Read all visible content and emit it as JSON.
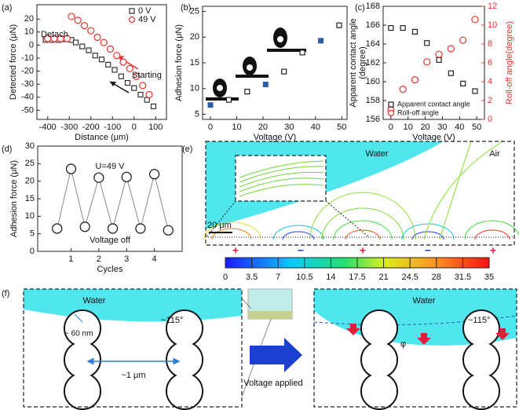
{
  "chart_data": [
    {
      "type": "scatter",
      "panel": "(a)",
      "xlabel": "Distance (μm)",
      "ylabel": "Detected force (μN)",
      "xlim": [
        -450,
        150
      ],
      "ylim": [
        -57,
        31
      ],
      "xticks": [
        -400,
        -300,
        -200,
        -100,
        0,
        100
      ],
      "yticks": [
        20,
        10,
        0,
        -10,
        -20,
        -30,
        -40,
        -50
      ],
      "annotations": [
        "Detach",
        "Starting"
      ],
      "legend": "upper right",
      "series": [
        {
          "name": "0 V",
          "color": "#333333",
          "marker": "square",
          "x": [
            -410,
            -380,
            -350,
            -320,
            -290,
            -270,
            -240,
            -210,
            -180,
            -150,
            -120,
            -90,
            -60,
            -30,
            0,
            30,
            60,
            90
          ],
          "values": [
            4,
            4,
            4,
            4.5,
            4,
            2,
            -1,
            -4,
            -8,
            -11,
            -15,
            -19,
            -24,
            -29,
            -33,
            -38,
            -42,
            -47
          ]
        },
        {
          "name": "49 V",
          "color": "#e8322d",
          "marker": "circle",
          "x": [
            -400,
            -370,
            -340,
            -310,
            -290,
            -260,
            -230,
            -200,
            -170,
            -140,
            -110,
            -80,
            -50,
            -20,
            10,
            40,
            70
          ],
          "values": [
            5,
            5,
            5,
            5,
            22,
            19,
            15,
            11,
            6,
            2,
            -3,
            -8,
            -13,
            -18,
            -24,
            -31,
            -38
          ]
        }
      ]
    },
    {
      "type": "scatter",
      "panel": "(b)",
      "xlabel": "Voltage (V)",
      "ylabel": "Adhesion force (μN)",
      "xlim": [
        -3,
        52
      ],
      "ylim": [
        4,
        26
      ],
      "xticks": [
        0,
        10,
        20,
        30,
        40,
        50
      ],
      "yticks": [
        5,
        10,
        15,
        20,
        25
      ],
      "series": [
        {
          "color": "#222222",
          "marker": "square",
          "x": [
            7,
            14,
            28,
            35,
            49
          ],
          "values": [
            7.8,
            9.4,
            13.3,
            17,
            22.3
          ]
        },
        {
          "color": "#2d5fa8",
          "marker": "filled",
          "x": [
            0,
            21,
            42
          ],
          "values": [
            6.8,
            10.8,
            19.3
          ]
        }
      ]
    },
    {
      "type": "scatter",
      "panel": "(c)",
      "xlabel": "Voltage (V)",
      "ylabel": [
        "Apparent contact angle",
        "(degree)"
      ],
      "y2label": "Roll-off angle(degree)",
      "xlim": [
        -4.5,
        54.5
      ],
      "ylim": [
        156,
        168
      ],
      "y2lim": [
        0,
        12
      ],
      "xticks": [
        0,
        10,
        20,
        30,
        40,
        50
      ],
      "yticks": [
        156,
        158,
        160,
        162,
        164,
        166,
        168
      ],
      "y2ticks": [
        0,
        2,
        4,
        6,
        8,
        10,
        12
      ],
      "legend": "lower right",
      "series": [
        {
          "name": "Apparent contact angle",
          "color": "#222222",
          "marker": "square",
          "x": [
            0,
            7,
            14,
            21,
            28,
            35,
            42,
            49
          ],
          "values": [
            165.7,
            165.7,
            165.3,
            164.1,
            162.3,
            160.9,
            159.8,
            159
          ]
        },
        {
          "name": "Roll-off angle",
          "color": "#e8322d",
          "marker": "circle",
          "axis": "y2",
          "x": [
            0,
            7,
            14,
            21,
            28,
            35,
            42,
            49
          ],
          "values": [
            1,
            3.2,
            4.2,
            6.1,
            6.9,
            7.5,
            8.4,
            10.6
          ]
        }
      ]
    },
    {
      "type": "line",
      "panel": "(d)",
      "xlabel": "Cycles",
      "ylabel": "Adhesion force (μN)",
      "xlim": [
        -0.2,
        5
      ],
      "ylim": [
        0,
        30
      ],
      "xticks": [
        1,
        2,
        3,
        4
      ],
      "yticks": [
        0,
        5,
        10,
        15,
        20,
        25,
        30
      ],
      "annotations": [
        "U=49 V",
        "Voltage off"
      ],
      "series": [
        {
          "color": "#888888",
          "marker": "circle",
          "x": [
            0.5,
            1,
            1.5,
            2,
            2.5,
            3,
            3.5,
            4,
            4.5
          ],
          "values": [
            6.5,
            23.5,
            7,
            21,
            6.5,
            21.2,
            6.5,
            22,
            6
          ]
        }
      ]
    }
  ],
  "panel_e": {
    "label": "(e)",
    "water": "Water",
    "air": "Air",
    "scale_bar": "20 μm",
    "charges": [
      "+",
      "−",
      "+",
      "−",
      "+"
    ],
    "colorbar_ticks": [
      0,
      3.5,
      7,
      10.5,
      14,
      17.5,
      21,
      24.5,
      28,
      31.5,
      35
    ]
  },
  "panel_f": {
    "label": "(f)",
    "left": {
      "water": "Water",
      "angle": "~115°",
      "radius": "~ 60 nm",
      "spacing": "~1 μm"
    },
    "arrow": "Voltage applied",
    "right": {
      "water": "Water",
      "angle": "~115°",
      "phi": "φ"
    }
  }
}
